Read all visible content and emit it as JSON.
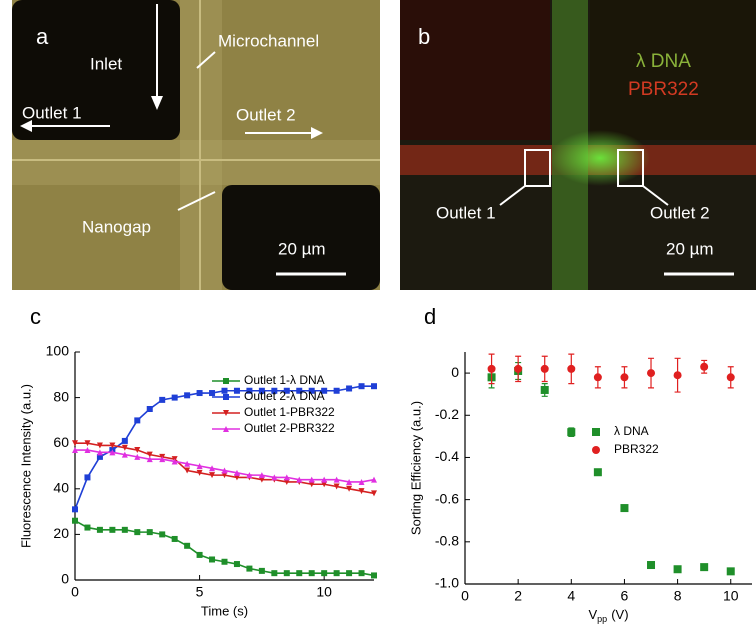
{
  "panels": [
    {
      "label": "a",
      "annotations": [
        "Inlet",
        "Microchannel",
        "Outlet 1",
        "Outlet 2",
        "Nanogap"
      ],
      "scale_bar": "20 µm"
    },
    {
      "label": "b",
      "legend": [
        "λ DNA",
        "PBR322"
      ],
      "annotations": [
        "Outlet 1",
        "Outlet 2"
      ],
      "scale_bar": "20 µm"
    }
  ],
  "chart_data": [
    {
      "type": "line",
      "panel_label": "c",
      "xlabel": "Time (s)",
      "ylabel": "Fluorescence Intensity (a.u.)",
      "xlim": [
        0,
        12
      ],
      "xticks": [
        0,
        5,
        10
      ],
      "ylim": [
        0,
        100
      ],
      "yticks": [
        0,
        20,
        40,
        60,
        80,
        100
      ],
      "x": [
        0,
        0.5,
        1,
        1.5,
        2,
        2.5,
        3,
        3.5,
        4,
        4.5,
        5,
        5.5,
        6,
        6.5,
        7,
        7.5,
        8,
        8.5,
        9,
        9.5,
        10,
        10.5,
        11,
        11.5,
        12
      ],
      "series": [
        {
          "name": "Outlet 1-λ DNA",
          "color": "#1f8f2a",
          "marker": "square",
          "values": [
            26,
            23,
            22,
            22,
            22,
            21,
            21,
            20,
            18,
            15,
            11,
            9,
            8,
            7,
            5,
            4,
            3,
            3,
            3,
            3,
            3,
            3,
            3,
            3,
            2
          ]
        },
        {
          "name": "Outlet 2-λ DNA",
          "color": "#1f3fd6",
          "marker": "square",
          "values": [
            31,
            45,
            54,
            57,
            61,
            70,
            75,
            79,
            80,
            81,
            82,
            82,
            83,
            83,
            83,
            83,
            83,
            83,
            83,
            83,
            83,
            83,
            84,
            85,
            85
          ]
        },
        {
          "name": "Outlet 1-PBR322",
          "color": "#d42020",
          "marker": "triangle-down",
          "values": [
            60,
            60,
            59,
            59,
            58,
            57,
            55,
            54,
            53,
            48,
            47,
            46,
            46,
            45,
            45,
            44,
            44,
            43,
            43,
            42,
            42,
            41,
            40,
            39,
            38
          ]
        },
        {
          "name": "Outlet 2-PBR322",
          "color": "#e030e0",
          "marker": "triangle-up",
          "values": [
            57,
            57,
            56,
            56,
            55,
            54,
            53,
            53,
            52,
            51,
            50,
            49,
            48,
            47,
            46,
            46,
            45,
            45,
            44,
            44,
            44,
            44,
            43,
            43,
            44
          ]
        }
      ]
    },
    {
      "type": "scatter",
      "panel_label": "d",
      "xlabel": "V",
      "xlabel_sub": "pp",
      "xlabel_unit": "(V)",
      "ylabel": "Sorting Efficiency (a.u.)",
      "xlim": [
        0,
        10.8
      ],
      "xticks": [
        0,
        2,
        4,
        6,
        8,
        10
      ],
      "ylim": [
        -1,
        0.1
      ],
      "yticks": [
        {
          "value": -1,
          "label": "-1.0"
        },
        -0.8,
        -0.6,
        -0.4,
        -0.2,
        0
      ],
      "x": [
        1,
        2,
        3,
        4,
        5,
        6,
        7,
        8,
        9,
        10
      ],
      "series": [
        {
          "name": "λ DNA",
          "color": "#1f8f2a",
          "marker": "square",
          "values": [
            -0.02,
            0.01,
            -0.08,
            -0.28,
            -0.47,
            -0.64,
            -0.91,
            -0.93,
            -0.92,
            -0.94
          ],
          "errors": [
            0.05,
            0.04,
            0.03,
            0.02,
            0.015,
            0.01,
            0.01,
            0.01,
            0.01,
            0.01
          ]
        },
        {
          "name": "PBR322",
          "color": "#e02020",
          "marker": "circle",
          "values": [
            0.02,
            0.02,
            0.02,
            0.02,
            -0.02,
            -0.02,
            0,
            -0.01,
            0.03,
            -0.02
          ],
          "errors": [
            0.07,
            0.06,
            0.06,
            0.07,
            0.05,
            0.05,
            0.07,
            0.08,
            0.03,
            0.05
          ]
        }
      ]
    }
  ]
}
